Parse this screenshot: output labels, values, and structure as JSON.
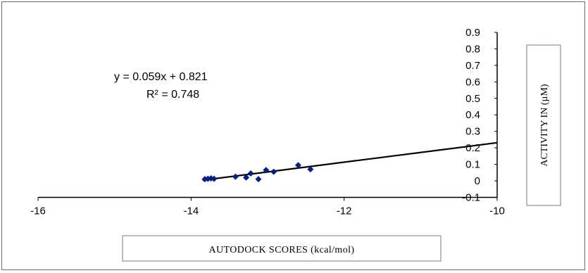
{
  "chart_data": {
    "type": "scatter",
    "title": "",
    "xlabel": "AUTODOCK SCORES (kcal/mol)",
    "ylabel": "ACTIVITY IN (µM)",
    "xlim": [
      -16,
      -10
    ],
    "ylim": [
      -0.1,
      0.9
    ],
    "x_ticks": [
      "-16",
      "-14",
      "-12",
      "-10"
    ],
    "y_ticks": [
      "0.9",
      "0.8",
      "0.7",
      "0.6",
      "0.5",
      "0.4",
      "0.3",
      "0.2",
      "0.1",
      "0",
      "-0.1"
    ],
    "grid": false,
    "points": [
      {
        "x": -13.82,
        "y": 0.01
      },
      {
        "x": -13.78,
        "y": 0.012
      },
      {
        "x": -13.74,
        "y": 0.015
      },
      {
        "x": -13.7,
        "y": 0.012
      },
      {
        "x": -13.42,
        "y": 0.025
      },
      {
        "x": -13.28,
        "y": 0.02
      },
      {
        "x": -13.22,
        "y": 0.045
      },
      {
        "x": -13.12,
        "y": 0.01
      },
      {
        "x": -13.02,
        "y": 0.065
      },
      {
        "x": -12.92,
        "y": 0.055
      },
      {
        "x": -12.6,
        "y": 0.095
      },
      {
        "x": -12.44,
        "y": 0.07
      }
    ],
    "trendline": {
      "slope": 0.059,
      "intercept": 0.821,
      "equation": "y = 0.059x  + 0.821",
      "r_squared": "R² = 0.748"
    },
    "colors": {
      "marker": "#0a1f78",
      "line": "#000000",
      "axis": "#000000"
    }
  }
}
